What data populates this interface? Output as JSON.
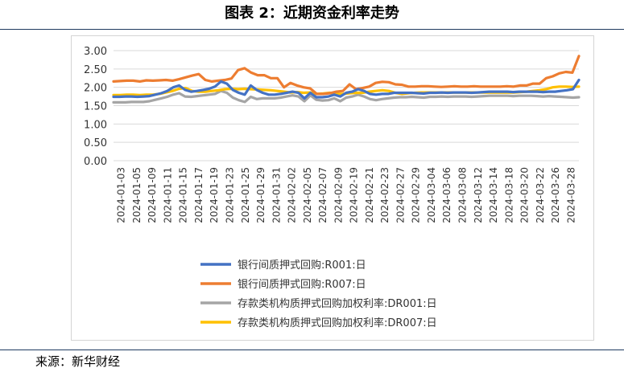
{
  "header": {
    "title": "图表 2：近期资金利率走势"
  },
  "footer": {
    "source": "来源：新华财经"
  },
  "colors": {
    "r001": "#4472C4",
    "r007": "#ED7D31",
    "dr001": "#A5A5A5",
    "dr007": "#FFC000",
    "rule": "#1f3a60"
  },
  "chart_data": {
    "type": "line",
    "title": "",
    "xlabel": "",
    "ylabel": "",
    "ylim": [
      0,
      3
    ],
    "yticks": [
      "0.00",
      "0.50",
      "1.00",
      "1.50",
      "2.00",
      "2.50",
      "3.00"
    ],
    "x_tick_labels": [
      "2024-01-03",
      "2024-01-05",
      "2024-01-09",
      "2024-01-11",
      "2024-01-15",
      "2024-01-17",
      "2024-01-19",
      "2024-01-23",
      "2024-01-25",
      "2024-01-29",
      "2024-01-31",
      "2024-02-02",
      "2024-02-05",
      "2024-02-07",
      "2024-02-09",
      "2024-02-19",
      "2024-02-21",
      "2024-02-23",
      "2024-02-27",
      "2024-02-29",
      "2024-03-04",
      "2024-03-06",
      "2024-03-08",
      "2024-03-12",
      "2024-03-14",
      "2024-03-18",
      "2024-03-20",
      "2024-03-22",
      "2024-03-26",
      "2024-03-28"
    ],
    "legend": [
      "银行间质押式回购:R001:日",
      "银行间质押式回购:R007:日",
      "存款类机构质押式回购加权利率:DR001:日",
      "存款类机构质押式回购加权利率:DR007:日"
    ],
    "series": [
      {
        "name": "银行间质押式回购:R001:日",
        "values": [
          1.74,
          1.74,
          1.75,
          1.75,
          1.74,
          1.75,
          1.76,
          1.8,
          1.84,
          1.9,
          2.0,
          2.05,
          1.93,
          1.88,
          1.9,
          1.93,
          1.96,
          2.02,
          2.16,
          2.1,
          1.93,
          1.85,
          1.8,
          2.05,
          1.93,
          1.85,
          1.8,
          1.8,
          1.82,
          1.85,
          1.88,
          1.85,
          1.7,
          1.85,
          1.73,
          1.73,
          1.75,
          1.8,
          1.75,
          1.85,
          1.88,
          1.95,
          1.9,
          1.82,
          1.8,
          1.82,
          1.82,
          1.85,
          1.85,
          1.85,
          1.85,
          1.84,
          1.83,
          1.85,
          1.85,
          1.86,
          1.85,
          1.86,
          1.86,
          1.86,
          1.85,
          1.86,
          1.87,
          1.88,
          1.88,
          1.88,
          1.88,
          1.87,
          1.88,
          1.88,
          1.88,
          1.88,
          1.87,
          1.88,
          1.88,
          1.9,
          1.92,
          1.95,
          2.2
        ]
      },
      {
        "name": "银行间质押式回购:R007:日",
        "values": [
          2.16,
          2.17,
          2.18,
          2.18,
          2.16,
          2.19,
          2.18,
          2.19,
          2.2,
          2.18,
          2.22,
          2.27,
          2.32,
          2.36,
          2.2,
          2.16,
          2.18,
          2.2,
          2.24,
          2.47,
          2.52,
          2.4,
          2.33,
          2.33,
          2.25,
          2.25,
          2.0,
          2.12,
          2.05,
          2.0,
          1.97,
          1.82,
          1.82,
          1.84,
          1.88,
          1.9,
          2.08,
          1.95,
          1.98,
          2.02,
          2.12,
          2.15,
          2.14,
          2.08,
          2.07,
          2.02,
          2.02,
          2.03,
          2.03,
          2.02,
          2.01,
          2.02,
          2.03,
          2.02,
          2.02,
          2.03,
          2.02,
          2.02,
          2.02,
          2.02,
          2.03,
          2.02,
          2.05,
          2.05,
          2.1,
          2.1,
          2.25,
          2.3,
          2.38,
          2.42,
          2.4,
          2.85
        ]
      },
      {
        "name": "存款类机构质押式回购加权利率:DR001:日",
        "values": [
          1.59,
          1.59,
          1.59,
          1.6,
          1.6,
          1.6,
          1.62,
          1.66,
          1.7,
          1.74,
          1.8,
          1.84,
          1.75,
          1.74,
          1.76,
          1.78,
          1.8,
          1.82,
          1.9,
          1.85,
          1.72,
          1.65,
          1.6,
          1.74,
          1.68,
          1.7,
          1.7,
          1.7,
          1.72,
          1.75,
          1.78,
          1.75,
          1.62,
          1.78,
          1.66,
          1.64,
          1.65,
          1.7,
          1.62,
          1.72,
          1.75,
          1.8,
          1.75,
          1.68,
          1.65,
          1.68,
          1.7,
          1.72,
          1.73,
          1.73,
          1.74,
          1.73,
          1.72,
          1.74,
          1.74,
          1.75,
          1.74,
          1.75,
          1.75,
          1.75,
          1.74,
          1.75,
          1.76,
          1.77,
          1.77,
          1.77,
          1.77,
          1.76,
          1.77,
          1.77,
          1.77,
          1.76,
          1.75,
          1.76,
          1.75,
          1.74,
          1.73,
          1.72,
          1.73
        ]
      },
      {
        "name": "存款类机构质押式回购加权利率:DR007:日",
        "values": [
          1.79,
          1.79,
          1.8,
          1.8,
          1.79,
          1.8,
          1.8,
          1.82,
          1.86,
          1.9,
          1.96,
          1.98,
          1.9,
          1.88,
          1.88,
          1.9,
          1.92,
          1.95,
          1.96,
          1.95,
          1.96,
          1.95,
          1.94,
          1.93,
          1.92,
          1.9,
          1.88,
          1.86,
          1.87,
          1.85,
          1.86,
          1.82,
          1.83,
          1.85,
          1.82,
          1.82,
          1.84,
          1.85,
          1.85,
          1.88,
          1.9,
          1.92,
          1.9,
          1.85,
          1.82,
          1.84,
          1.85,
          1.86,
          1.86,
          1.86,
          1.86,
          1.86,
          1.86,
          1.86,
          1.86,
          1.86,
          1.86,
          1.86,
          1.86,
          1.86,
          1.86,
          1.86,
          1.87,
          1.88,
          1.9,
          1.92,
          1.95,
          2.0,
          2.02,
          2.02,
          2.01,
          2.02
        ]
      }
    ]
  }
}
